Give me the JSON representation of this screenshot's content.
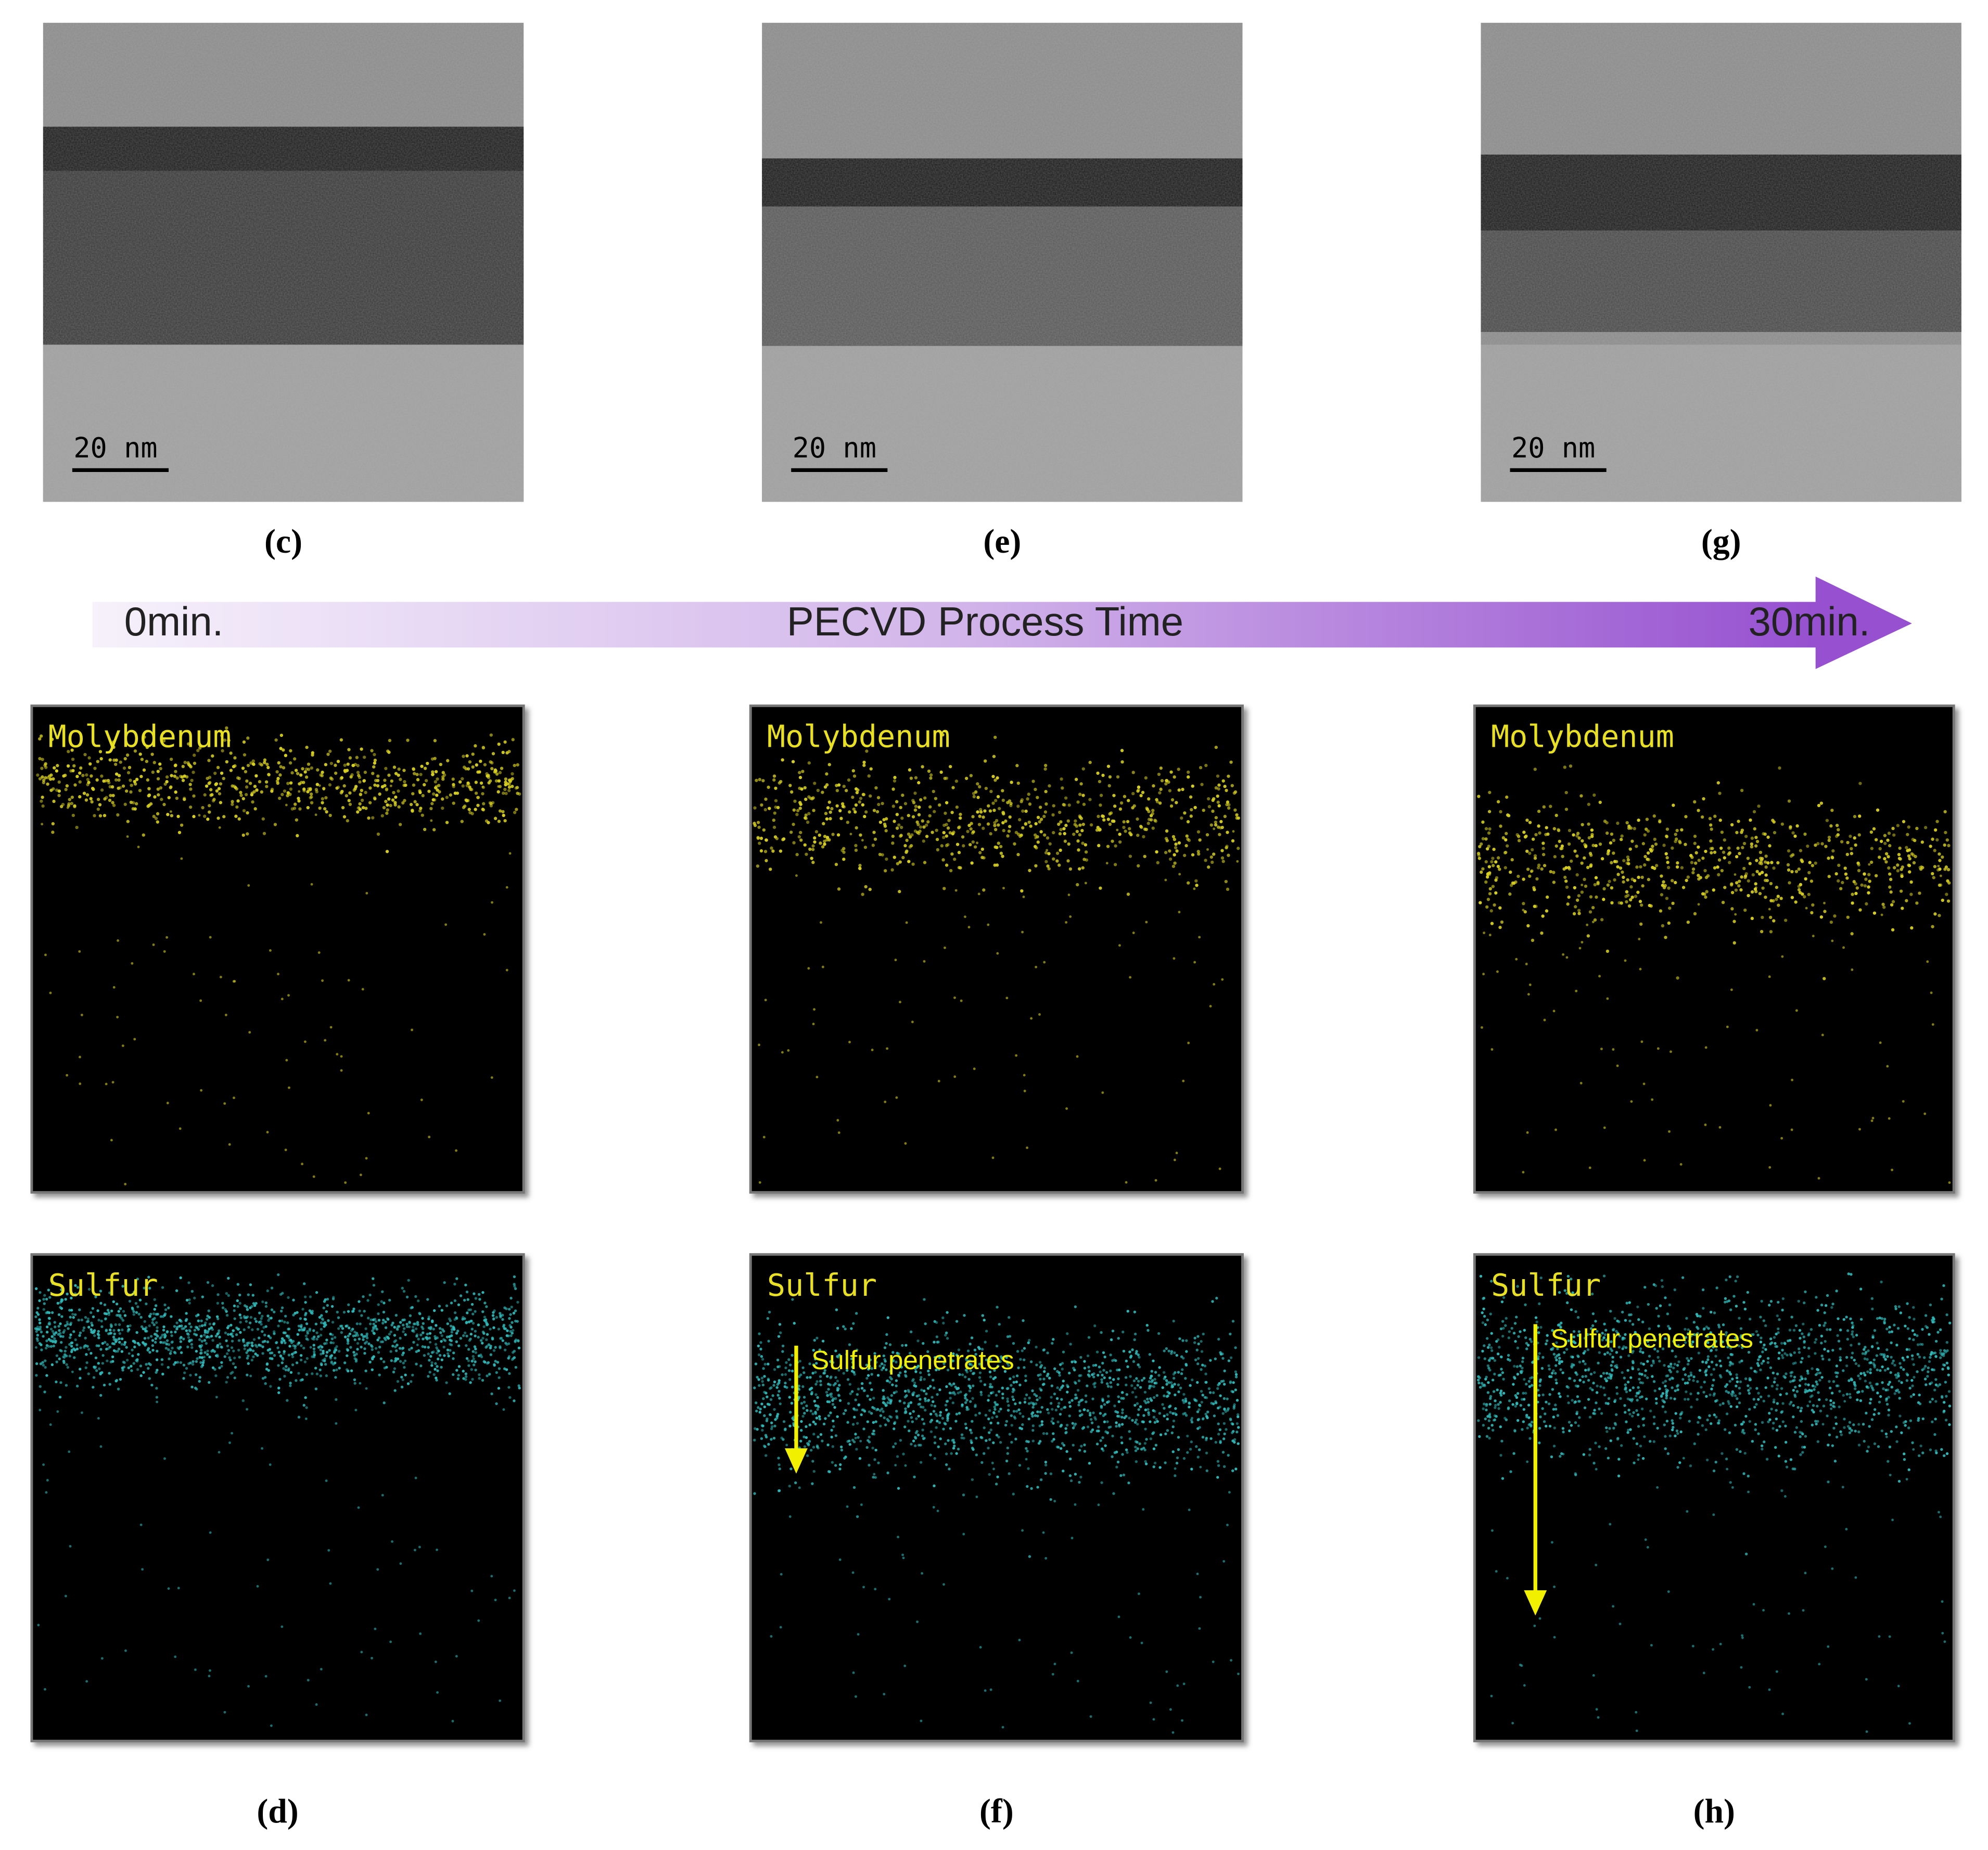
{
  "arrow": {
    "start": "0min.",
    "title": "PECVD Process Time",
    "end": "30min."
  },
  "columns": [
    {
      "tem_scale_bar": "20 nm",
      "tem_label": "(c)",
      "molybdenum_label": "Molybdenum",
      "sulfur_label": "Sulfur",
      "eds_label": "(d)"
    },
    {
      "tem_scale_bar": "20 nm",
      "tem_label": "(e)",
      "molybdenum_label": "Molybdenum",
      "sulfur_label": "Sulfur",
      "annotation": "Sulfur penetrates",
      "eds_label": "(f)"
    },
    {
      "tem_scale_bar": "20 nm",
      "tem_label": "(g)",
      "molybdenum_label": "Molybdenum",
      "sulfur_label": "Sulfur",
      "annotation": "Sulfur penetrates",
      "eds_label": "(h)"
    }
  ]
}
